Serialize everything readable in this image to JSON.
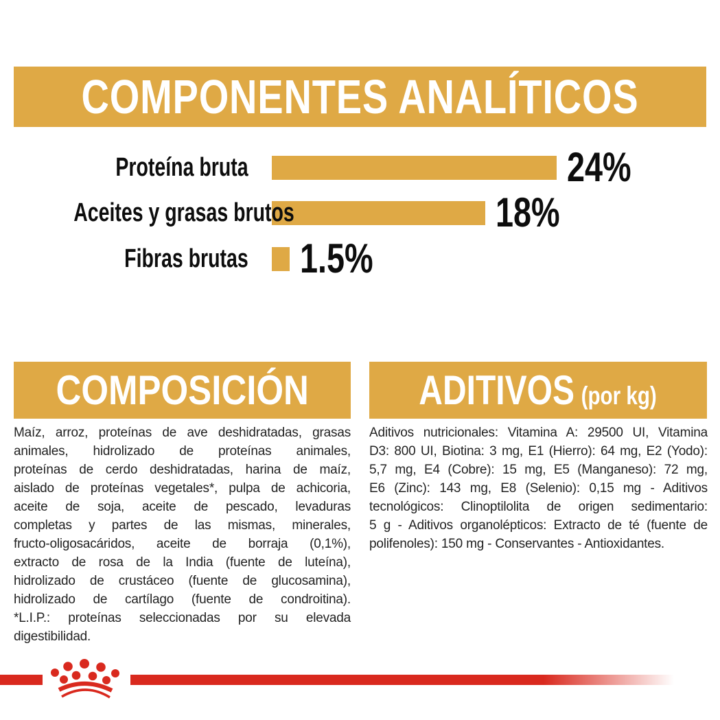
{
  "colors": {
    "gold": "#DFA945",
    "red": "#D9291E",
    "text": "#222222"
  },
  "analytical_header": {
    "title": "COMPONENTES ANALÍTICOS"
  },
  "chart_data": {
    "type": "bar",
    "orientation": "horizontal",
    "title": "COMPONENTES ANALÍTICOS",
    "categories": [
      "Proteína bruta",
      "Aceites y grasas brutos",
      "Fibras brutas"
    ],
    "values": [
      24,
      18,
      1.5
    ],
    "value_labels": [
      "24%",
      "18%",
      "1.5%"
    ],
    "unit": "%",
    "xlim": [
      0,
      24
    ],
    "bar_color": "#DFA945",
    "grid": false,
    "legend": "none"
  },
  "composition": {
    "title": "COMPOSICIÓN",
    "lines": [
      "Maíz, arroz, proteínas de ave deshidratadas, grasas",
      "animales, hidrolizado de proteínas animales,",
      "proteínas de cerdo deshidratadas, harina de maíz,",
      "aislado de proteínas vegetales*, pulpa de achicoria,",
      "aceite de soja, aceite de pescado, levaduras",
      "completas y partes de las mismas, minerales,",
      "fructo-oligosacáridos, aceite de borraja (0,1%),",
      "extracto de rosa de la India (fuente de luteína),",
      "hidrolizado de crustáceo (fuente de glucosamina),",
      "hidrolizado de cartílago (fuente de condroitina).",
      "*L.I.P.: proteínas seleccionadas por su elevada",
      "digestibilidad."
    ]
  },
  "additives": {
    "title": "ADITIVOS",
    "subtitle": "(por kg)",
    "lines": [
      "Aditivos nutricionales: Vitamina A: 29500 UI, Vitamina",
      "D3: 800 UI, Biotina: 3 mg, E1 (Hierro): 64 mg, E2 (Yodo):",
      "5,7 mg, E4 (Cobre): 15 mg, E5 (Manganeso): 72 mg,",
      "E6 (Zinc): 143 mg, E8 (Selenio): 0,15 mg - Aditivos",
      "tecnológicos: Clinoptilolita de origen sedimentario:",
      "5 g - Aditivos organolépticos: Extracto de té (fuente de",
      "polifenoles): 150 mg - Conservantes - Antioxidantes."
    ]
  },
  "footer": {
    "brand_icon": "royal-canin-crown-icon"
  }
}
